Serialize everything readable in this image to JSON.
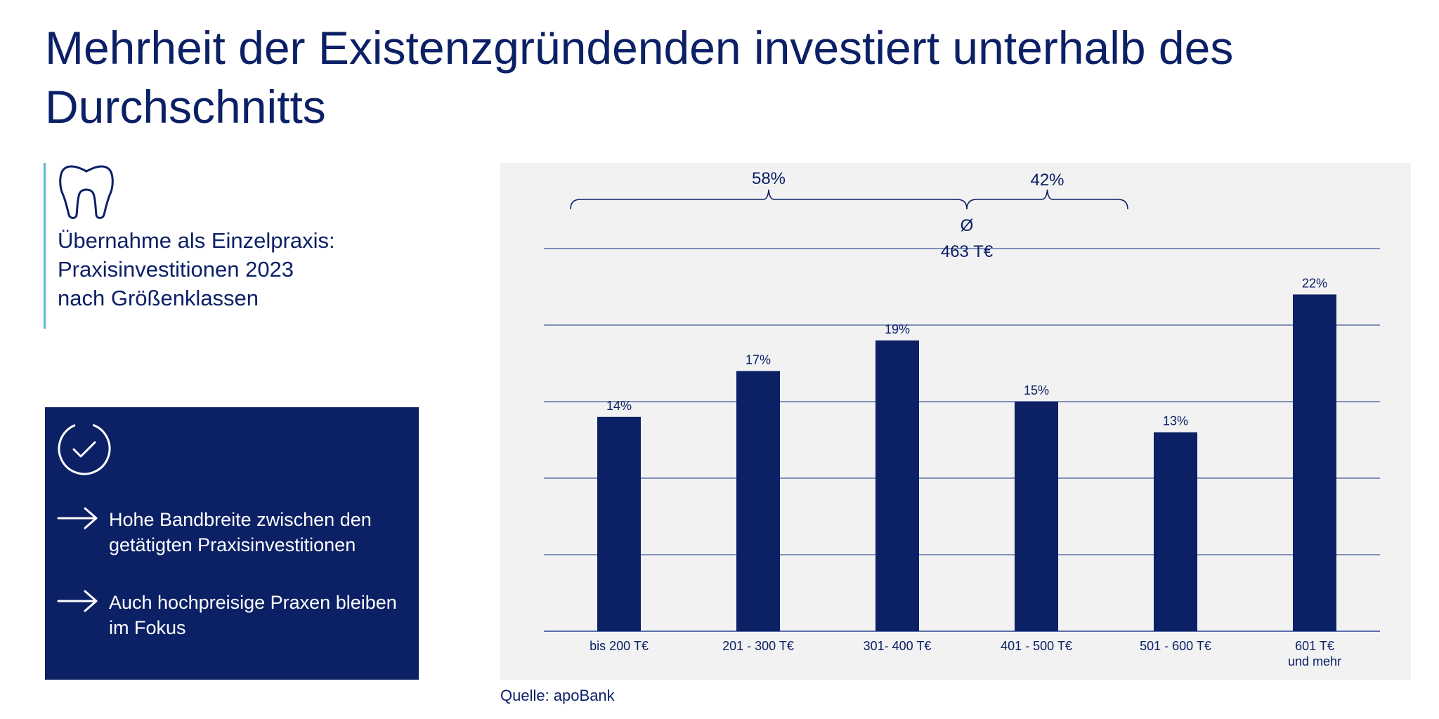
{
  "title": "Mehrheit der Existenzgründenden investiert unterhalb des Durchschnitts",
  "subtitle": {
    "icon": "tooth-icon",
    "lines": [
      "Übernahme als Einzelpraxis:",
      "Praxisinvestitionen 2023",
      "nach Größenklassen"
    ]
  },
  "info_box": {
    "icon": "check-circle-icon",
    "bullets": [
      "Hohe Bandbreite zwischen den getätigten Praxisinvestitionen",
      "Auch hochpreisige Praxen bleiben im Fokus"
    ]
  },
  "colors": {
    "navy": "#0c2066",
    "accent": "#5fb8cc",
    "panel": "#f2f2f2",
    "grid": "#5a6fa8"
  },
  "chart_data": {
    "type": "bar",
    "categories": [
      [
        "bis 200 T€"
      ],
      [
        "201 - 300 T€"
      ],
      [
        "301- 400 T€"
      ],
      [
        "401 - 500 T€"
      ],
      [
        "501 - 600 T€"
      ],
      [
        "601 T€",
        "und mehr"
      ]
    ],
    "values": [
      14,
      17,
      19,
      15,
      13,
      22
    ],
    "data_labels": [
      "14%",
      "17%",
      "19%",
      "15%",
      "13%",
      "22%"
    ],
    "ylim": [
      0,
      25
    ],
    "grid": true,
    "average": {
      "symbol": "Ø",
      "label": "463 T€",
      "position_after_category_index": 2.5
    },
    "brackets": [
      {
        "label": "58%",
        "from_category": 0,
        "to_category": 2
      },
      {
        "label": "42%",
        "from_category": 3,
        "to_category": 5
      }
    ]
  },
  "source": "Quelle: apoBank"
}
